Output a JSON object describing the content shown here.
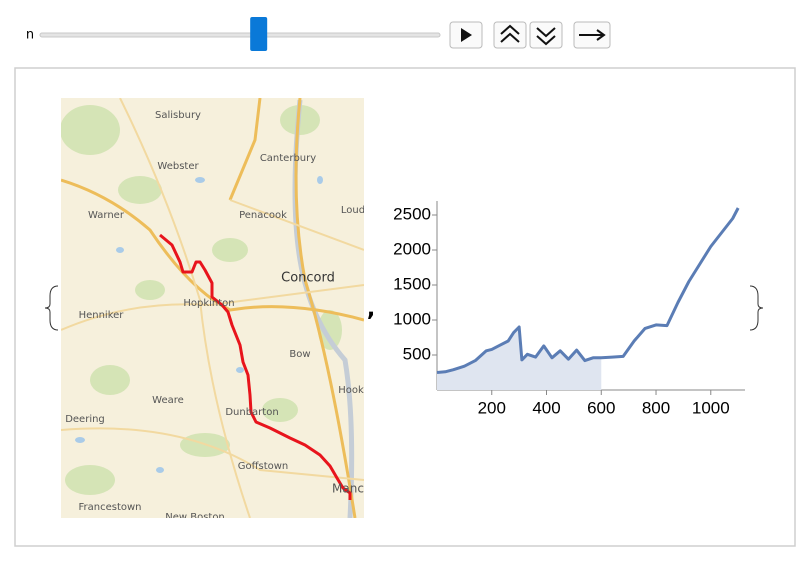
{
  "controls": {
    "label": "n",
    "n": {
      "value": 600,
      "min": 0,
      "max": 1100
    }
  },
  "map": {
    "places": [
      "Salisbury",
      "Webster",
      "Canterbury",
      "Warner",
      "Penacook",
      "Loud",
      "Concord",
      "Hopkinton",
      "Henniker",
      "Bow",
      "Dunbarton",
      "Weare",
      "Hook",
      "Deering",
      "Goffstown",
      "Manc",
      "Francestown",
      "New Boston"
    ]
  },
  "chart_data": {
    "type": "line",
    "color": "#5b7db5",
    "fill_color": "#dfe5f0",
    "x": [
      0,
      30,
      60,
      100,
      140,
      180,
      200,
      230,
      260,
      280,
      300,
      310,
      330,
      360,
      390,
      420,
      450,
      480,
      510,
      540,
      570,
      600,
      640,
      680,
      720,
      760,
      800,
      840,
      880,
      920,
      960,
      1000,
      1040,
      1080,
      1100
    ],
    "values": [
      250,
      260,
      290,
      340,
      420,
      560,
      580,
      640,
      700,
      820,
      900,
      430,
      510,
      470,
      630,
      460,
      560,
      440,
      570,
      420,
      460,
      460,
      470,
      480,
      700,
      880,
      930,
      920,
      1250,
      1550,
      1800,
      2050,
      2250,
      2450,
      2600
    ],
    "xlim": [
      0,
      1125
    ],
    "ylim": [
      0,
      2700
    ],
    "xticks": [
      200,
      400,
      600,
      800,
      1000
    ],
    "yticks": [
      500,
      1000,
      1500,
      2000,
      2500
    ]
  }
}
